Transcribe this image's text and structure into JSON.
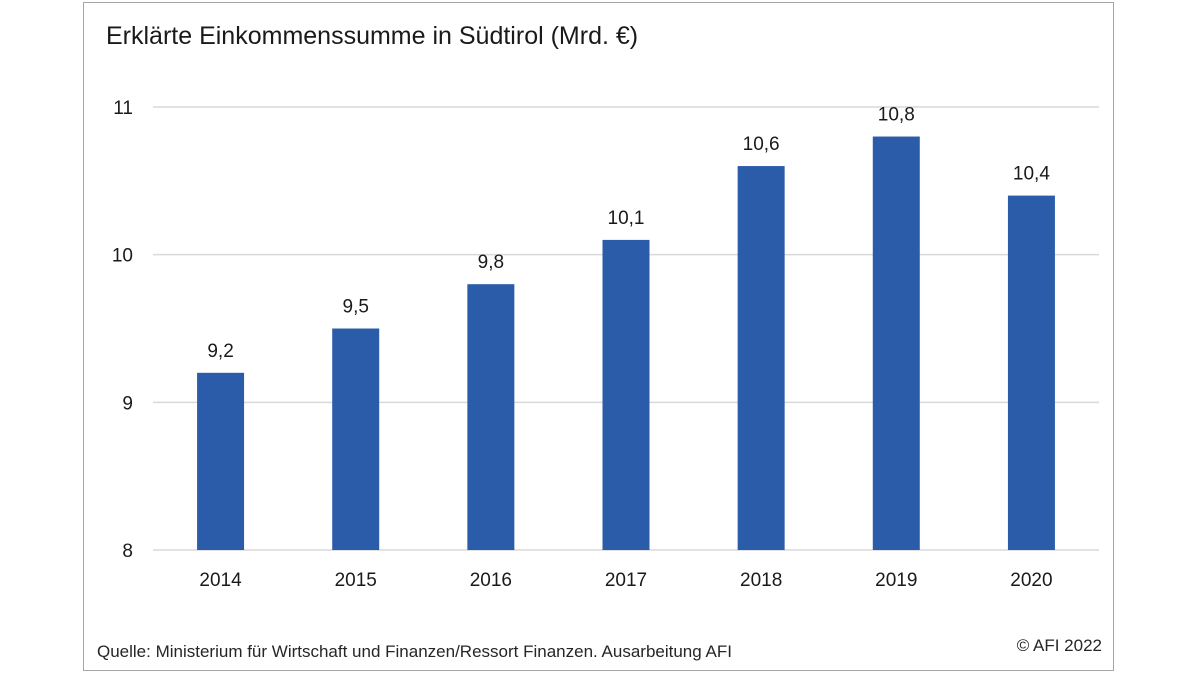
{
  "chart_data": {
    "type": "bar",
    "title": "Erklärte Einkommenssumme in Südtirol (Mrd. €)",
    "categories": [
      "2014",
      "2015",
      "2016",
      "2017",
      "2018",
      "2019",
      "2020"
    ],
    "values": [
      9.2,
      9.5,
      9.8,
      10.1,
      10.6,
      10.8,
      10.4
    ],
    "value_labels": [
      "9,2",
      "9,5",
      "9,8",
      "10,1",
      "10,6",
      "10,8",
      "10,4"
    ],
    "ylim": [
      8,
      11
    ],
    "yticks": [
      8,
      9,
      10,
      11
    ],
    "ytick_labels": [
      "8",
      "9",
      "10",
      "11"
    ],
    "xlabel": "",
    "ylabel": "",
    "grid": true,
    "legend": false,
    "bar_color": "#2b5caa",
    "grid_color": "#d9d9d9"
  },
  "footer": {
    "source": "Quelle: Ministerium für Wirtschaft und Finanzen/Ressort Finanzen. Ausarbeitung AFI",
    "copyright": "© AFI  2022"
  }
}
